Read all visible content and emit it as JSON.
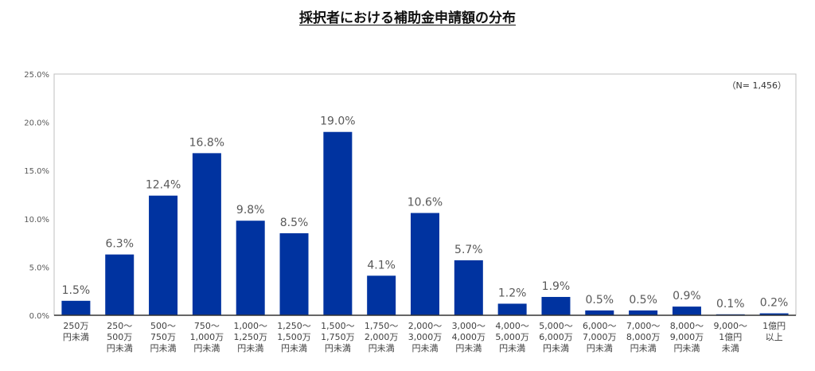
{
  "chart_data": {
    "type": "bar",
    "title": "採択者における補助金申請額の分布",
    "annotation": "（N= 1,456）",
    "ylim": [
      0,
      25
    ],
    "yticks": [
      "0.0%",
      "5.0%",
      "10.0%",
      "15.0%",
      "20.0%",
      "25.0%"
    ],
    "categories": [
      [
        "250万",
        "円未満"
      ],
      [
        "250〜",
        "500万",
        "円未満"
      ],
      [
        "500〜",
        "750万",
        "円未満"
      ],
      [
        "750〜",
        "1,000万",
        "円未満"
      ],
      [
        "1,000〜",
        "1,250万",
        "円未満"
      ],
      [
        "1,250〜",
        "1,500万",
        "円未満"
      ],
      [
        "1,500〜",
        "1,750万",
        "円未満"
      ],
      [
        "1,750〜",
        "2,000万",
        "円未満"
      ],
      [
        "2,000〜",
        "3,000万",
        "円未満"
      ],
      [
        "3,000〜",
        "4,000万",
        "円未満"
      ],
      [
        "4,000〜",
        "5,000万",
        "円未満"
      ],
      [
        "5,000〜",
        "6,000万",
        "円未満"
      ],
      [
        "6,000〜",
        "7,000万",
        "円未満"
      ],
      [
        "7,000〜",
        "8,000万",
        "円未満"
      ],
      [
        "8,000〜",
        "9,000万",
        "円未満"
      ],
      [
        "9,000〜",
        "1億円",
        "未満"
      ],
      [
        "1億円",
        "以上"
      ]
    ],
    "values": [
      1.5,
      6.3,
      12.4,
      16.8,
      9.8,
      8.5,
      19.0,
      4.1,
      10.6,
      5.7,
      1.2,
      1.9,
      0.5,
      0.5,
      0.9,
      0.1,
      0.2
    ],
    "labels": [
      "1.5%",
      "6.3%",
      "12.4%",
      "16.8%",
      "9.8%",
      "8.5%",
      "19.0%",
      "4.1%",
      "10.6%",
      "5.7%",
      "1.2%",
      "1.9%",
      "0.5%",
      "0.5%",
      "0.9%",
      "0.1%",
      "0.2%"
    ],
    "bar_color": "#0033a0",
    "grid": false
  }
}
